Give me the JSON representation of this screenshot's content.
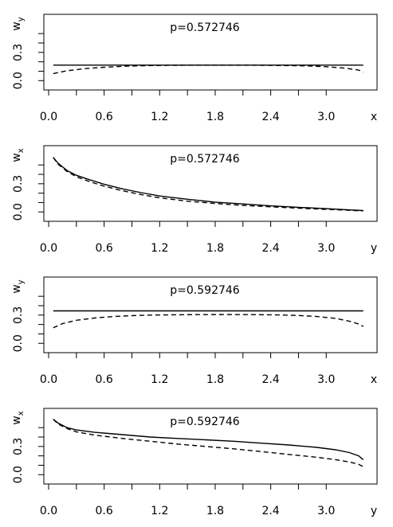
{
  "chart_data": [
    {
      "type": "line",
      "title": "p=0.572746",
      "xlabel": "x",
      "ylabel_main": "w",
      "ylabel_sub": "y",
      "xlim": [
        0.0,
        3.42
      ],
      "ylim": [
        -0.04,
        0.62
      ],
      "x_ticks": [
        0.0,
        0.6,
        1.2,
        1.8,
        2.4,
        3.0
      ],
      "x_tick_labels": [
        "0.0",
        "0.6",
        "1.2",
        "1.8",
        "2.4",
        "3.0"
      ],
      "y_ticks": [
        0.0,
        0.1,
        0.2,
        0.3,
        0.4,
        0.5
      ],
      "y_tick_labels": [
        "0.0",
        "",
        "",
        "0.3",
        "",
        ""
      ],
      "series": [
        {
          "style": "solid",
          "x": [
            0.05,
            0.5,
            1.0,
            1.5,
            2.0,
            2.5,
            3.0,
            3.4
          ],
          "y": [
            0.165,
            0.165,
            0.165,
            0.165,
            0.165,
            0.165,
            0.165,
            0.165
          ]
        },
        {
          "style": "dashed",
          "x": [
            0.05,
            0.2,
            0.4,
            0.6,
            0.8,
            1.0,
            1.2,
            1.4,
            1.7,
            2.0,
            2.3,
            2.6,
            2.8,
            3.0,
            3.2,
            3.35,
            3.4
          ],
          "y": [
            0.075,
            0.105,
            0.128,
            0.142,
            0.152,
            0.158,
            0.161,
            0.163,
            0.164,
            0.164,
            0.163,
            0.16,
            0.156,
            0.148,
            0.133,
            0.112,
            0.09
          ]
        }
      ]
    },
    {
      "type": "line",
      "title": "p=0.572746",
      "xlabel": "y",
      "ylabel_main": "w",
      "ylabel_sub": "x",
      "xlim": [
        0.0,
        3.42
      ],
      "ylim": [
        -0.04,
        0.62
      ],
      "x_ticks": [
        0.0,
        0.6,
        1.2,
        1.8,
        2.4,
        3.0
      ],
      "x_tick_labels": [
        "0.0",
        "0.6",
        "1.2",
        "1.8",
        "2.4",
        "3.0"
      ],
      "y_ticks": [
        0.0,
        0.1,
        0.2,
        0.3,
        0.4,
        0.5
      ],
      "y_tick_labels": [
        "0.0",
        "",
        "",
        "0.3",
        "",
        ""
      ],
      "series": [
        {
          "style": "solid",
          "x": [
            0.05,
            0.1,
            0.2,
            0.3,
            0.45,
            0.6,
            0.8,
            1.0,
            1.2,
            1.5,
            1.8,
            2.1,
            2.4,
            2.7,
            3.0,
            3.2,
            3.4
          ],
          "y": [
            0.58,
            0.52,
            0.44,
            0.39,
            0.34,
            0.295,
            0.245,
            0.205,
            0.17,
            0.135,
            0.105,
            0.085,
            0.065,
            0.05,
            0.035,
            0.025,
            0.015
          ]
        },
        {
          "style": "dashed",
          "x": [
            0.05,
            0.1,
            0.2,
            0.3,
            0.45,
            0.6,
            0.8,
            1.0,
            1.2,
            1.5,
            1.8,
            2.1,
            2.4,
            2.7,
            3.0,
            3.2,
            3.4
          ],
          "y": [
            0.58,
            0.51,
            0.43,
            0.375,
            0.32,
            0.275,
            0.225,
            0.185,
            0.15,
            0.115,
            0.09,
            0.07,
            0.055,
            0.04,
            0.028,
            0.02,
            0.012
          ]
        }
      ]
    },
    {
      "type": "line",
      "title": "p=0.592746",
      "xlabel": "x",
      "ylabel_main": "w",
      "ylabel_sub": "y",
      "xlim": [
        0.0,
        3.42
      ],
      "ylim": [
        -0.04,
        0.62
      ],
      "x_ticks": [
        0.0,
        0.6,
        1.2,
        1.8,
        2.4,
        3.0
      ],
      "x_tick_labels": [
        "0.0",
        "0.6",
        "1.2",
        "1.8",
        "2.4",
        "3.0"
      ],
      "y_ticks": [
        0.0,
        0.1,
        0.2,
        0.3,
        0.4,
        0.5
      ],
      "y_tick_labels": [
        "0.0",
        "",
        "",
        "0.3",
        "",
        ""
      ],
      "series": [
        {
          "style": "solid",
          "x": [
            0.05,
            0.5,
            1.0,
            1.5,
            2.0,
            2.5,
            3.0,
            3.4
          ],
          "y": [
            0.345,
            0.345,
            0.345,
            0.345,
            0.345,
            0.345,
            0.345,
            0.345
          ]
        },
        {
          "style": "dashed",
          "x": [
            0.05,
            0.15,
            0.3,
            0.5,
            0.7,
            0.9,
            1.1,
            1.3,
            1.6,
            1.9,
            2.2,
            2.5,
            2.7,
            2.9,
            3.1,
            3.25,
            3.35,
            3.4
          ],
          "y": [
            0.165,
            0.21,
            0.245,
            0.27,
            0.285,
            0.294,
            0.3,
            0.303,
            0.305,
            0.306,
            0.305,
            0.302,
            0.296,
            0.285,
            0.265,
            0.235,
            0.205,
            0.18
          ]
        }
      ]
    },
    {
      "type": "line",
      "title": "p=0.592746",
      "xlabel": "y",
      "ylabel_main": "w",
      "ylabel_sub": "x",
      "xlim": [
        0.0,
        3.42
      ],
      "ylim": [
        -0.04,
        0.62
      ],
      "x_ticks": [
        0.0,
        0.6,
        1.2,
        1.8,
        2.4,
        3.0
      ],
      "x_tick_labels": [
        "0.0",
        "0.6",
        "1.2",
        "1.8",
        "2.4",
        "3.0"
      ],
      "y_ticks": [
        0.0,
        0.1,
        0.2,
        0.3,
        0.4,
        0.5
      ],
      "y_tick_labels": [
        "0.0",
        "",
        "",
        "0.3",
        "",
        ""
      ],
      "series": [
        {
          "style": "solid",
          "x": [
            0.05,
            0.1,
            0.2,
            0.3,
            0.5,
            0.8,
            1.1,
            1.4,
            1.7,
            2.0,
            2.3,
            2.6,
            2.9,
            3.1,
            3.25,
            3.35,
            3.4
          ],
          "y": [
            0.59,
            0.55,
            0.5,
            0.475,
            0.45,
            0.425,
            0.4,
            0.385,
            0.37,
            0.355,
            0.335,
            0.315,
            0.29,
            0.265,
            0.235,
            0.2,
            0.16
          ]
        },
        {
          "style": "dashed",
          "x": [
            0.05,
            0.1,
            0.2,
            0.3,
            0.5,
            0.8,
            1.1,
            1.4,
            1.7,
            2.0,
            2.3,
            2.6,
            2.9,
            3.1,
            3.25,
            3.35,
            3.4
          ],
          "y": [
            0.59,
            0.54,
            0.49,
            0.455,
            0.42,
            0.385,
            0.355,
            0.325,
            0.3,
            0.275,
            0.245,
            0.215,
            0.185,
            0.16,
            0.135,
            0.11,
            0.085
          ]
        }
      ]
    }
  ]
}
